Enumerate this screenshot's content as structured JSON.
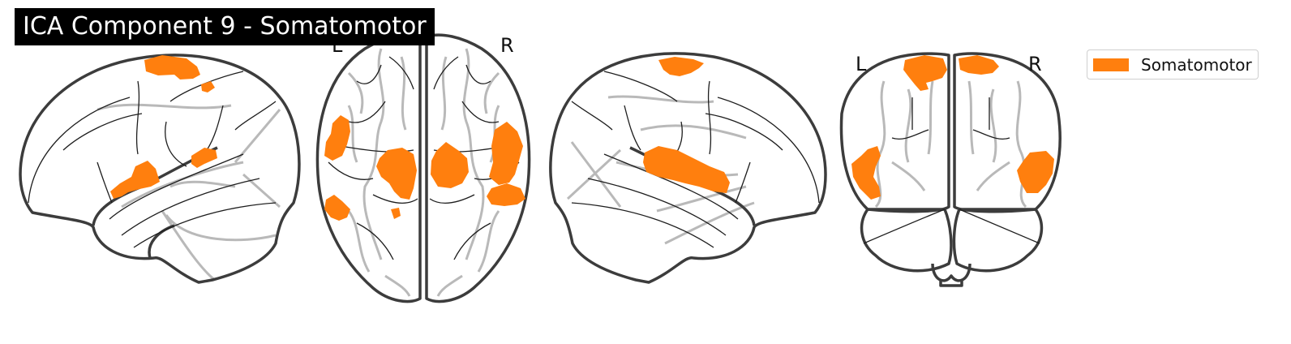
{
  "title": "ICA Component 9 - Somatomotor",
  "views": {
    "axial": {
      "left_label": "L",
      "right_label": "R"
    },
    "coronal": {
      "left_label": "L",
      "right_label": "R"
    }
  },
  "legend": {
    "entries": [
      {
        "label": "Somatomotor",
        "color": "#ff7f0e"
      }
    ]
  },
  "colors": {
    "activation": "#ff7f0e",
    "outline": "#3c3c3c",
    "gyri": "#b9b9b9",
    "title_bg": "#000000",
    "title_text": "#ffffff"
  }
}
